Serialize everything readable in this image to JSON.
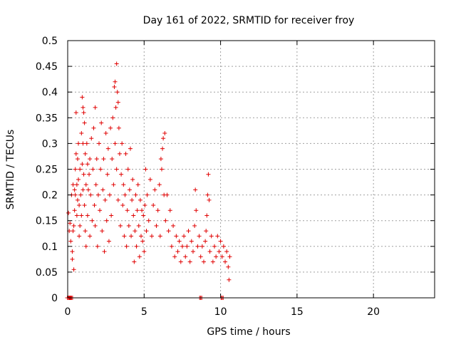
{
  "chart_data": {
    "type": "scatter",
    "title": "Day 161 of 2022, SRMTID for receiver froy",
    "xlabel": "GPS time / hours",
    "ylabel": "SRMTID / TECUs",
    "xlim": [
      0,
      24
    ],
    "ylim": [
      0,
      0.5
    ],
    "x_ticks": [
      0,
      5,
      10,
      15,
      20
    ],
    "x_tick_labels": [
      "0",
      "5",
      "10",
      "15",
      "20"
    ],
    "y_ticks": [
      0,
      0.05,
      0.1,
      0.15,
      0.2,
      0.25,
      0.3,
      0.35,
      0.4,
      0.45,
      0.5
    ],
    "y_tick_labels": [
      "0",
      "0.05",
      "0.1",
      "0.15",
      "0.2",
      "0.25",
      "0.3",
      "0.35",
      "0.4",
      "0.45",
      "0.5"
    ],
    "grid": true,
    "marker": "+",
    "marker_color": "#e00000",
    "series": [
      {
        "points": [
          [
            0.05,
            0.165
          ],
          [
            0.1,
            0.13
          ],
          [
            0.15,
            0.145
          ],
          [
            0.2,
            0.11
          ],
          [
            0.25,
            0.2
          ],
          [
            0.3,
            0.075
          ],
          [
            0.3,
            0.09
          ],
          [
            0.35,
            0.13
          ],
          [
            0.35,
            0.22
          ],
          [
            0.4,
            0.055
          ],
          [
            0.4,
            0.14
          ],
          [
            0.45,
            0.21
          ],
          [
            0.45,
            0.17
          ],
          [
            0.5,
            0.25
          ],
          [
            0.5,
            0.2
          ],
          [
            0.55,
            0.28
          ],
          [
            0.55,
            0.36
          ],
          [
            0.6,
            0.22
          ],
          [
            0.6,
            0.16
          ],
          [
            0.65,
            0.27
          ],
          [
            0.65,
            0.19
          ],
          [
            0.7,
            0.3
          ],
          [
            0.7,
            0.23
          ],
          [
            0.75,
            0.18
          ],
          [
            0.75,
            0.12
          ],
          [
            0.8,
            0.25
          ],
          [
            0.8,
            0.14
          ],
          [
            0.85,
            0.2
          ],
          [
            0.9,
            0.32
          ],
          [
            0.9,
            0.16
          ],
          [
            0.95,
            0.39
          ],
          [
            0.95,
            0.26
          ],
          [
            1.0,
            0.37
          ],
          [
            1.0,
            0.3
          ],
          [
            1.0,
            0.21
          ],
          [
            1.05,
            0.36
          ],
          [
            1.05,
            0.24
          ],
          [
            1.1,
            0.34
          ],
          [
            1.1,
            0.18
          ],
          [
            1.15,
            0.28
          ],
          [
            1.15,
            0.13
          ],
          [
            1.2,
            0.22
          ],
          [
            1.2,
            0.1
          ],
          [
            1.25,
            0.3
          ],
          [
            1.3,
            0.26
          ],
          [
            1.3,
            0.16
          ],
          [
            1.35,
            0.21
          ],
          [
            1.4,
            0.24
          ],
          [
            1.45,
            0.27
          ],
          [
            1.45,
            0.12
          ],
          [
            1.5,
            0.2
          ],
          [
            1.55,
            0.31
          ],
          [
            1.6,
            0.15
          ],
          [
            1.65,
            0.25
          ],
          [
            1.7,
            0.33
          ],
          [
            1.75,
            0.18
          ],
          [
            1.8,
            0.37
          ],
          [
            1.8,
            0.14
          ],
          [
            1.85,
            0.22
          ],
          [
            1.9,
            0.27
          ],
          [
            1.95,
            0.1
          ],
          [
            2.0,
            0.2
          ],
          [
            2.05,
            0.3
          ],
          [
            2.1,
            0.17
          ],
          [
            2.15,
            0.25
          ],
          [
            2.2,
            0.34
          ],
          [
            2.25,
            0.13
          ],
          [
            2.3,
            0.21
          ],
          [
            2.35,
            0.27
          ],
          [
            2.4,
            0.09
          ],
          [
            2.45,
            0.19
          ],
          [
            2.5,
            0.32
          ],
          [
            2.55,
            0.15
          ],
          [
            2.6,
            0.24
          ],
          [
            2.65,
            0.29
          ],
          [
            2.7,
            0.11
          ],
          [
            2.75,
            0.2
          ],
          [
            2.8,
            0.33
          ],
          [
            2.85,
            0.16
          ],
          [
            2.9,
            0.27
          ],
          [
            2.95,
            0.35
          ],
          [
            3.0,
            0.22
          ],
          [
            3.05,
            0.41
          ],
          [
            3.1,
            0.42
          ],
          [
            3.1,
            0.3
          ],
          [
            3.15,
            0.37
          ],
          [
            3.2,
            0.455
          ],
          [
            3.2,
            0.25
          ],
          [
            3.25,
            0.4
          ],
          [
            3.3,
            0.38
          ],
          [
            3.3,
            0.19
          ],
          [
            3.35,
            0.33
          ],
          [
            3.4,
            0.28
          ],
          [
            3.45,
            0.14
          ],
          [
            3.5,
            0.24
          ],
          [
            3.55,
            0.3
          ],
          [
            3.6,
            0.18
          ],
          [
            3.65,
            0.22
          ],
          [
            3.7,
            0.12
          ],
          [
            3.75,
            0.2
          ],
          [
            3.8,
            0.28
          ],
          [
            3.85,
            0.1
          ],
          [
            3.9,
            0.17
          ],
          [
            3.95,
            0.25
          ],
          [
            4.0,
            0.14
          ],
          [
            4.05,
            0.21
          ],
          [
            4.1,
            0.29
          ],
          [
            4.15,
            0.12
          ],
          [
            4.2,
            0.19
          ],
          [
            4.25,
            0.23
          ],
          [
            4.3,
            0.16
          ],
          [
            4.35,
            0.07
          ],
          [
            4.4,
            0.13
          ],
          [
            4.45,
            0.2
          ],
          [
            4.5,
            0.1
          ],
          [
            4.55,
            0.17
          ],
          [
            4.6,
            0.22
          ],
          [
            4.65,
            0.14
          ],
          [
            4.7,
            0.08
          ],
          [
            4.75,
            0.19
          ],
          [
            4.8,
            0.12
          ],
          [
            4.85,
            0.17
          ],
          [
            4.9,
            0.11
          ],
          [
            4.95,
            0.16
          ],
          [
            5.0,
            0.09
          ],
          [
            5.05,
            0.18
          ],
          [
            5.1,
            0.25
          ],
          [
            5.15,
            0.13
          ],
          [
            5.2,
            0.2
          ],
          [
            5.3,
            0.15
          ],
          [
            5.4,
            0.23
          ],
          [
            5.5,
            0.12
          ],
          [
            5.6,
            0.18
          ],
          [
            5.7,
            0.21
          ],
          [
            5.8,
            0.14
          ],
          [
            5.9,
            0.17
          ],
          [
            6.0,
            0.22
          ],
          [
            6.05,
            0.12
          ],
          [
            6.1,
            0.27
          ],
          [
            6.15,
            0.25
          ],
          [
            6.2,
            0.29
          ],
          [
            6.25,
            0.31
          ],
          [
            6.3,
            0.2
          ],
          [
            6.35,
            0.32
          ],
          [
            6.4,
            0.15
          ],
          [
            6.5,
            0.2
          ],
          [
            6.6,
            0.13
          ],
          [
            6.7,
            0.17
          ],
          [
            6.8,
            0.1
          ],
          [
            6.9,
            0.14
          ],
          [
            7.0,
            0.08
          ],
          [
            7.1,
            0.12
          ],
          [
            7.2,
            0.09
          ],
          [
            7.3,
            0.11
          ],
          [
            7.4,
            0.07
          ],
          [
            7.5,
            0.1
          ],
          [
            7.6,
            0.12
          ],
          [
            7.7,
            0.08
          ],
          [
            7.8,
            0.1
          ],
          [
            7.9,
            0.13
          ],
          [
            8.0,
            0.07
          ],
          [
            8.1,
            0.11
          ],
          [
            8.2,
            0.09
          ],
          [
            8.3,
            0.14
          ],
          [
            8.35,
            0.21
          ],
          [
            8.4,
            0.17
          ],
          [
            8.5,
            0.1
          ],
          [
            8.6,
            0.12
          ],
          [
            8.7,
            0.08
          ],
          [
            8.8,
            0.1
          ],
          [
            8.9,
            0.07
          ],
          [
            9.0,
            0.11
          ],
          [
            9.05,
            0.13
          ],
          [
            9.1,
            0.16
          ],
          [
            9.15,
            0.2
          ],
          [
            9.2,
            0.24
          ],
          [
            9.25,
            0.19
          ],
          [
            9.3,
            0.09
          ],
          [
            9.4,
            0.12
          ],
          [
            9.5,
            0.07
          ],
          [
            9.6,
            0.1
          ],
          [
            9.7,
            0.08
          ],
          [
            9.8,
            0.12
          ],
          [
            9.9,
            0.09
          ],
          [
            10.0,
            0.11
          ],
          [
            10.1,
            0.08
          ],
          [
            10.2,
            0.1
          ],
          [
            10.3,
            0.07
          ],
          [
            10.4,
            0.09
          ],
          [
            10.5,
            0.06
          ],
          [
            10.55,
            0.035
          ],
          [
            10.6,
            0.08
          ]
        ]
      }
    ],
    "zero_clusters": [
      0.05,
      0.15,
      0.25,
      8.7,
      10.1
    ]
  }
}
